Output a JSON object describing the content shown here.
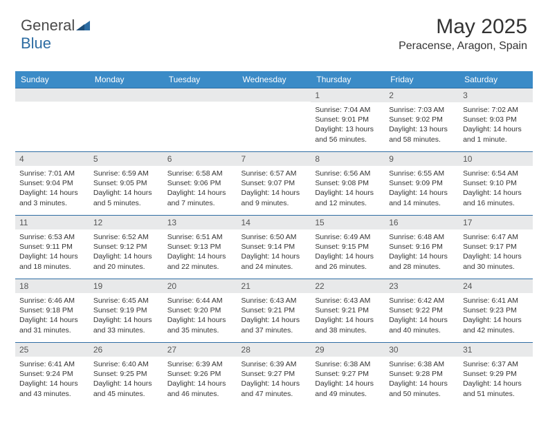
{
  "logo": {
    "part1": "General",
    "part2": "Blue"
  },
  "header": {
    "month_title": "May 2025",
    "location": "Peracense, Aragon, Spain"
  },
  "colors": {
    "header_bg": "#3b8bc7",
    "header_text": "#ffffff",
    "daynum_bg": "#e8e9ea",
    "rule": "#2d6ca2",
    "text": "#333333"
  },
  "weekdays": [
    "Sunday",
    "Monday",
    "Tuesday",
    "Wednesday",
    "Thursday",
    "Friday",
    "Saturday"
  ],
  "weeks": [
    [
      null,
      null,
      null,
      null,
      {
        "n": "1",
        "sr": "Sunrise: 7:04 AM",
        "ss": "Sunset: 9:01 PM",
        "dl": "Daylight: 13 hours and 56 minutes."
      },
      {
        "n": "2",
        "sr": "Sunrise: 7:03 AM",
        "ss": "Sunset: 9:02 PM",
        "dl": "Daylight: 13 hours and 58 minutes."
      },
      {
        "n": "3",
        "sr": "Sunrise: 7:02 AM",
        "ss": "Sunset: 9:03 PM",
        "dl": "Daylight: 14 hours and 1 minute."
      }
    ],
    [
      {
        "n": "4",
        "sr": "Sunrise: 7:01 AM",
        "ss": "Sunset: 9:04 PM",
        "dl": "Daylight: 14 hours and 3 minutes."
      },
      {
        "n": "5",
        "sr": "Sunrise: 6:59 AM",
        "ss": "Sunset: 9:05 PM",
        "dl": "Daylight: 14 hours and 5 minutes."
      },
      {
        "n": "6",
        "sr": "Sunrise: 6:58 AM",
        "ss": "Sunset: 9:06 PM",
        "dl": "Daylight: 14 hours and 7 minutes."
      },
      {
        "n": "7",
        "sr": "Sunrise: 6:57 AM",
        "ss": "Sunset: 9:07 PM",
        "dl": "Daylight: 14 hours and 9 minutes."
      },
      {
        "n": "8",
        "sr": "Sunrise: 6:56 AM",
        "ss": "Sunset: 9:08 PM",
        "dl": "Daylight: 14 hours and 12 minutes."
      },
      {
        "n": "9",
        "sr": "Sunrise: 6:55 AM",
        "ss": "Sunset: 9:09 PM",
        "dl": "Daylight: 14 hours and 14 minutes."
      },
      {
        "n": "10",
        "sr": "Sunrise: 6:54 AM",
        "ss": "Sunset: 9:10 PM",
        "dl": "Daylight: 14 hours and 16 minutes."
      }
    ],
    [
      {
        "n": "11",
        "sr": "Sunrise: 6:53 AM",
        "ss": "Sunset: 9:11 PM",
        "dl": "Daylight: 14 hours and 18 minutes."
      },
      {
        "n": "12",
        "sr": "Sunrise: 6:52 AM",
        "ss": "Sunset: 9:12 PM",
        "dl": "Daylight: 14 hours and 20 minutes."
      },
      {
        "n": "13",
        "sr": "Sunrise: 6:51 AM",
        "ss": "Sunset: 9:13 PM",
        "dl": "Daylight: 14 hours and 22 minutes."
      },
      {
        "n": "14",
        "sr": "Sunrise: 6:50 AM",
        "ss": "Sunset: 9:14 PM",
        "dl": "Daylight: 14 hours and 24 minutes."
      },
      {
        "n": "15",
        "sr": "Sunrise: 6:49 AM",
        "ss": "Sunset: 9:15 PM",
        "dl": "Daylight: 14 hours and 26 minutes."
      },
      {
        "n": "16",
        "sr": "Sunrise: 6:48 AM",
        "ss": "Sunset: 9:16 PM",
        "dl": "Daylight: 14 hours and 28 minutes."
      },
      {
        "n": "17",
        "sr": "Sunrise: 6:47 AM",
        "ss": "Sunset: 9:17 PM",
        "dl": "Daylight: 14 hours and 30 minutes."
      }
    ],
    [
      {
        "n": "18",
        "sr": "Sunrise: 6:46 AM",
        "ss": "Sunset: 9:18 PM",
        "dl": "Daylight: 14 hours and 31 minutes."
      },
      {
        "n": "19",
        "sr": "Sunrise: 6:45 AM",
        "ss": "Sunset: 9:19 PM",
        "dl": "Daylight: 14 hours and 33 minutes."
      },
      {
        "n": "20",
        "sr": "Sunrise: 6:44 AM",
        "ss": "Sunset: 9:20 PM",
        "dl": "Daylight: 14 hours and 35 minutes."
      },
      {
        "n": "21",
        "sr": "Sunrise: 6:43 AM",
        "ss": "Sunset: 9:21 PM",
        "dl": "Daylight: 14 hours and 37 minutes."
      },
      {
        "n": "22",
        "sr": "Sunrise: 6:43 AM",
        "ss": "Sunset: 9:21 PM",
        "dl": "Daylight: 14 hours and 38 minutes."
      },
      {
        "n": "23",
        "sr": "Sunrise: 6:42 AM",
        "ss": "Sunset: 9:22 PM",
        "dl": "Daylight: 14 hours and 40 minutes."
      },
      {
        "n": "24",
        "sr": "Sunrise: 6:41 AM",
        "ss": "Sunset: 9:23 PM",
        "dl": "Daylight: 14 hours and 42 minutes."
      }
    ],
    [
      {
        "n": "25",
        "sr": "Sunrise: 6:41 AM",
        "ss": "Sunset: 9:24 PM",
        "dl": "Daylight: 14 hours and 43 minutes."
      },
      {
        "n": "26",
        "sr": "Sunrise: 6:40 AM",
        "ss": "Sunset: 9:25 PM",
        "dl": "Daylight: 14 hours and 45 minutes."
      },
      {
        "n": "27",
        "sr": "Sunrise: 6:39 AM",
        "ss": "Sunset: 9:26 PM",
        "dl": "Daylight: 14 hours and 46 minutes."
      },
      {
        "n": "28",
        "sr": "Sunrise: 6:39 AM",
        "ss": "Sunset: 9:27 PM",
        "dl": "Daylight: 14 hours and 47 minutes."
      },
      {
        "n": "29",
        "sr": "Sunrise: 6:38 AM",
        "ss": "Sunset: 9:27 PM",
        "dl": "Daylight: 14 hours and 49 minutes."
      },
      {
        "n": "30",
        "sr": "Sunrise: 6:38 AM",
        "ss": "Sunset: 9:28 PM",
        "dl": "Daylight: 14 hours and 50 minutes."
      },
      {
        "n": "31",
        "sr": "Sunrise: 6:37 AM",
        "ss": "Sunset: 9:29 PM",
        "dl": "Daylight: 14 hours and 51 minutes."
      }
    ]
  ]
}
